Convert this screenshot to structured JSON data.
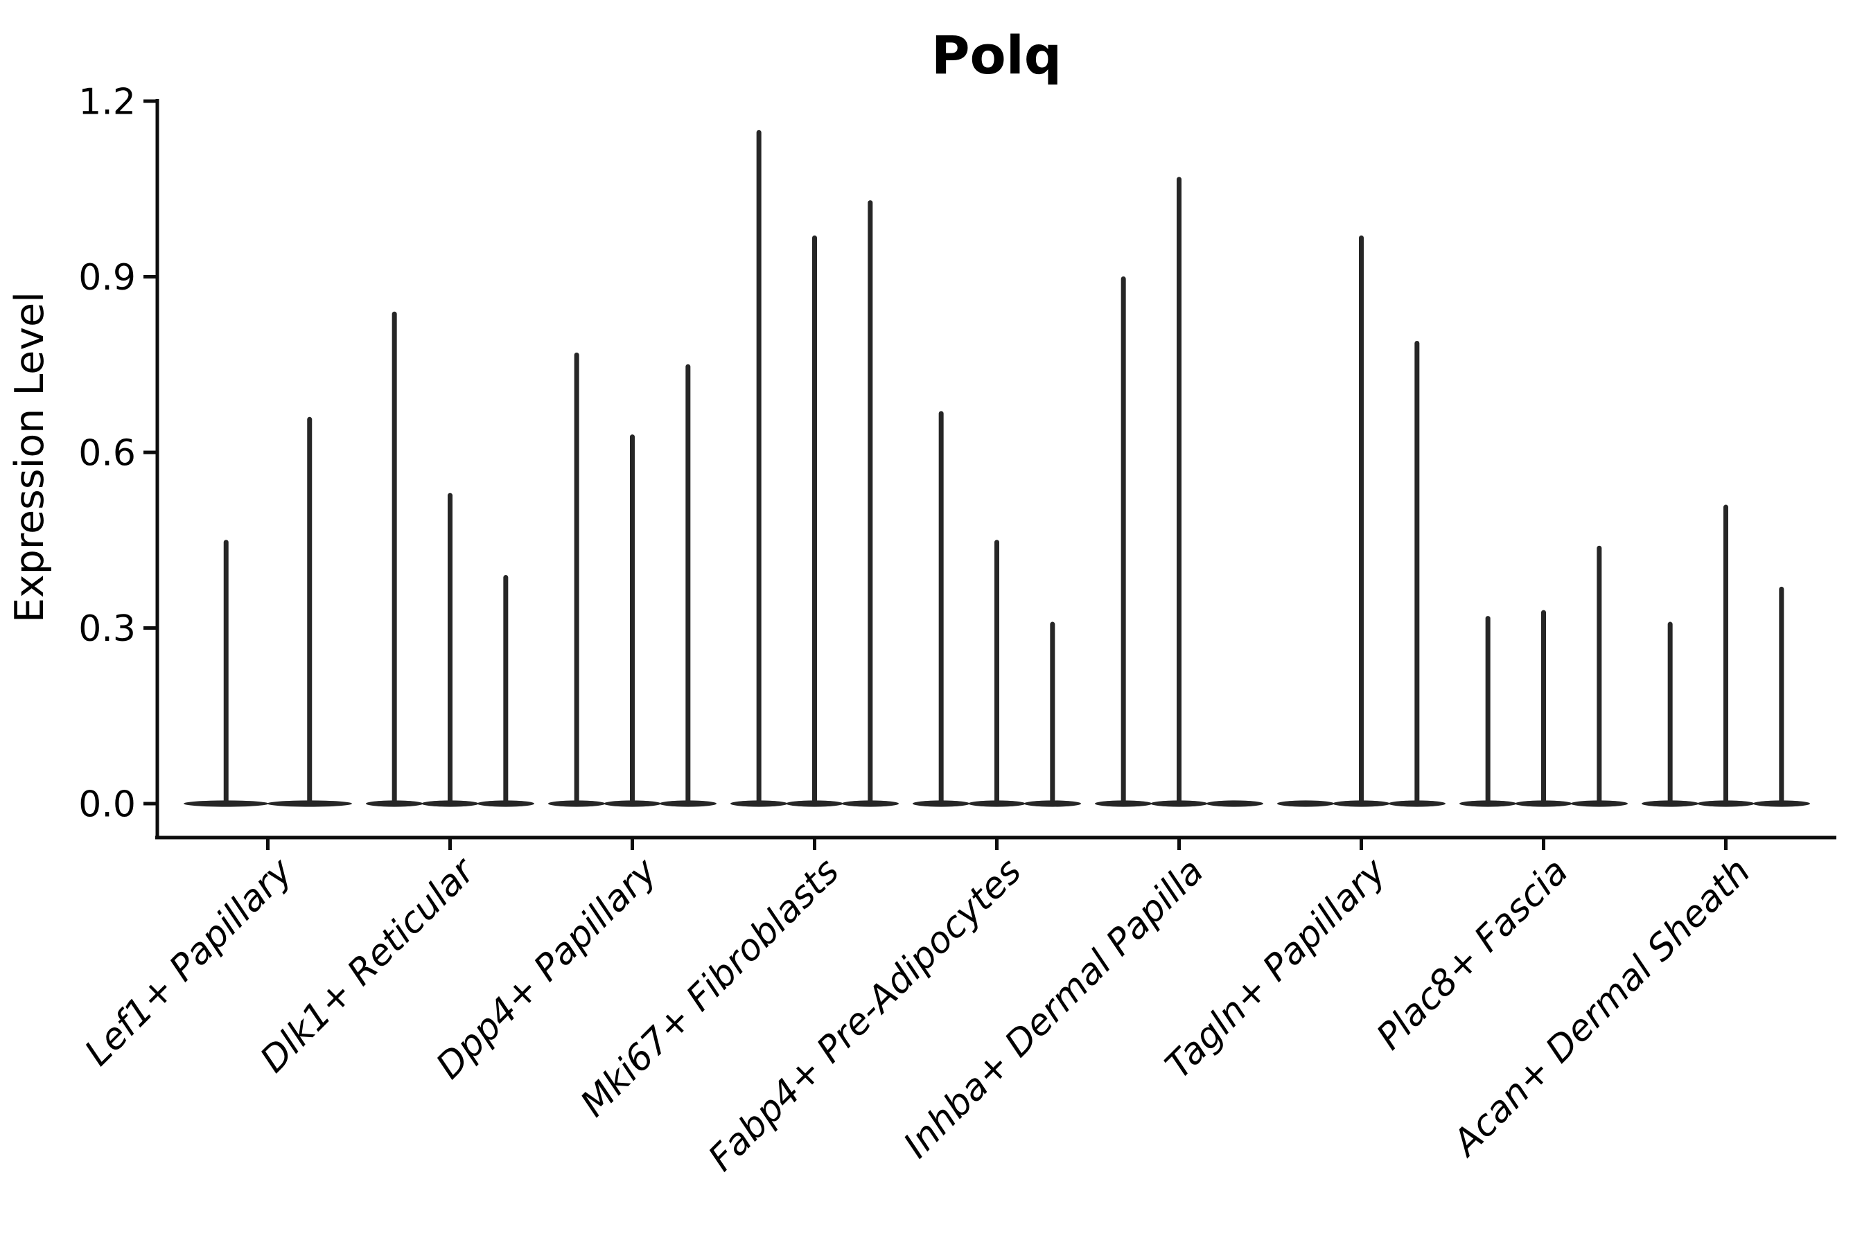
{
  "chart_data": {
    "type": "violin",
    "title": "Polq",
    "ylabel": "Expression Level",
    "xlabel": "",
    "ylim": [
      0.0,
      1.2
    ],
    "grid": false,
    "legend": "none",
    "yticks": [
      {
        "label": "0.0",
        "value": 0.0
      },
      {
        "label": "0.3",
        "value": 0.3
      },
      {
        "label": "0.6",
        "value": 0.6
      },
      {
        "label": "0.9",
        "value": 0.9
      },
      {
        "label": "1.2",
        "value": 1.2
      }
    ],
    "note": "Each category shows thin violins: density concentrated at 0 with a narrow spike up to the max expression value. A value of 0 means a flat violin (base only).",
    "categories": [
      {
        "label": "Lef1+ Papillary",
        "violin_max_values": [
          0.45,
          0.66
        ]
      },
      {
        "label": "Dlk1+ Reticular",
        "violin_max_values": [
          0.84,
          0.53,
          0.39
        ]
      },
      {
        "label": "Dpp4+ Papillary",
        "violin_max_values": [
          0.77,
          0.63,
          0.75
        ]
      },
      {
        "label": "Mki67+ Fibroblasts",
        "violin_max_values": [
          1.15,
          0.97,
          1.03
        ]
      },
      {
        "label": "Fabp4+ Pre-Adipocytes",
        "violin_max_values": [
          0.67,
          0.45,
          0.31
        ]
      },
      {
        "label": "Inhba+ Dermal Papilla",
        "violin_max_values": [
          0.9,
          1.07,
          0.0
        ]
      },
      {
        "label": "Tagln+ Papillary",
        "violin_max_values": [
          0.0,
          0.97,
          0.79
        ]
      },
      {
        "label": "Plac8+ Fascia",
        "violin_max_values": [
          0.32,
          0.33,
          0.44
        ]
      },
      {
        "label": "Acan+ Dermal Sheath",
        "violin_max_values": [
          0.31,
          0.51,
          0.37
        ]
      }
    ],
    "colors": {
      "violin_line": "#262626",
      "axis_line": "#0d0d0d",
      "text": "#000000",
      "background": "#ffffff"
    }
  }
}
